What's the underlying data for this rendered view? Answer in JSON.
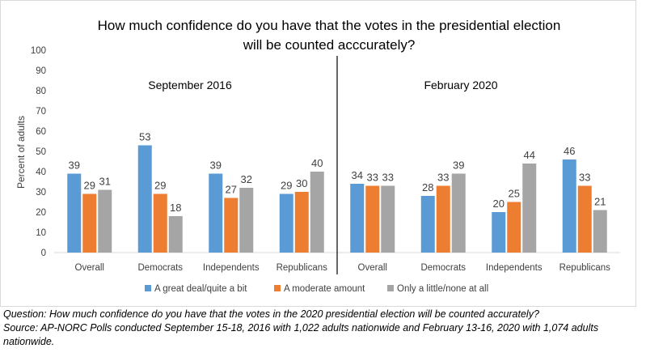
{
  "chart_data": {
    "type": "bar",
    "title": "How much confidence do you have that the votes in the presidential election will be counted acccurately?",
    "title_lines": [
      "How much confidence do you have that the votes in the presidential election",
      "will be counted acccurately?"
    ],
    "ylabel": "Percent of adults",
    "ylim": [
      0,
      100
    ],
    "yticks": [
      0,
      10,
      20,
      30,
      40,
      50,
      60,
      70,
      80,
      90,
      100
    ],
    "grid": false,
    "legend_position": "bottom",
    "panels": [
      {
        "label": "September 2016",
        "categories": [
          "Overall",
          "Democrats",
          "Independents",
          "Republicans"
        ],
        "series": [
          {
            "name": "A great deal/quite a bit",
            "values": [
              39,
              53,
              39,
              29
            ]
          },
          {
            "name": "A moderate amount",
            "values": [
              29,
              29,
              27,
              30
            ]
          },
          {
            "name": "Only a little/none at all",
            "values": [
              31,
              18,
              32,
              40
            ]
          }
        ]
      },
      {
        "label": "February 2020",
        "categories": [
          "Overall",
          "Democrats",
          "Independents",
          "Republicans"
        ],
        "series": [
          {
            "name": "A great deal/quite a bit",
            "values": [
              34,
              28,
              20,
              46
            ]
          },
          {
            "name": "A moderate amount",
            "values": [
              33,
              33,
              25,
              33
            ]
          },
          {
            "name": "Only a little/none at all",
            "values": [
              33,
              39,
              44,
              21
            ]
          }
        ]
      }
    ],
    "series_colors": [
      "#5b9bd5",
      "#ed7d31",
      "#a5a5a5"
    ]
  },
  "notes": {
    "question": "Question: How much confidence do you have that the votes in the 2020 presidential election will be counted accurately?",
    "source": "Source: AP-NORC Polls conducted September 15-18, 2016 with 1,022 adults nationwide and February 13-16, 2020 with 1,074 adults nationwide."
  }
}
